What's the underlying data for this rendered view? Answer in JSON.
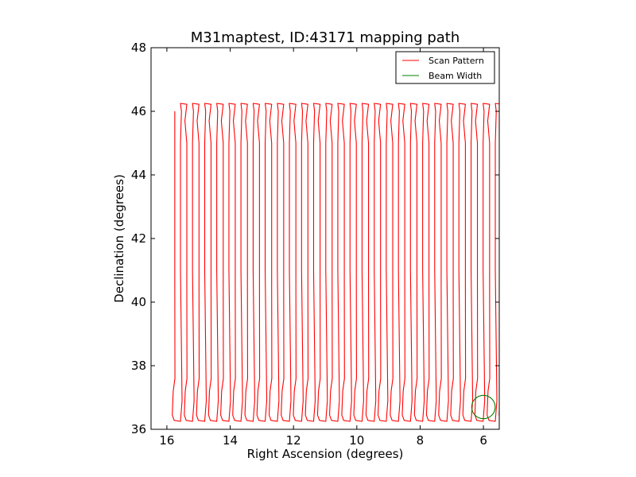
{
  "chart_data": {
    "type": "line",
    "title": "M31maptest, ID:43171 mapping path",
    "xlabel": "Right Ascension (degrees)",
    "ylabel": "Declination (degrees)",
    "xlim": [
      16.5,
      5.5
    ],
    "ylim": [
      36,
      48
    ],
    "x_ticks": [
      16,
      14,
      12,
      10,
      8,
      6
    ],
    "y_ticks": [
      36,
      38,
      40,
      42,
      44,
      46,
      48
    ],
    "x_tick_labels": [
      "16",
      "14",
      "12",
      "10",
      "8",
      "6"
    ],
    "y_tick_labels": [
      "36",
      "38",
      "40",
      "42",
      "44",
      "46",
      "48"
    ],
    "grid": false,
    "legend_position": "top-right",
    "series": [
      {
        "name": "Scan Pattern",
        "color": "#ff0000",
        "style": "raster",
        "x_start": 15.75,
        "x_end": 5.55,
        "scan_spacing": 0.38,
        "dec_low": 36.25,
        "dec_high": 46.25,
        "dec_start": 46.0
      },
      {
        "name": "Beam Width",
        "color": "#008000",
        "style": "circle",
        "center": [
          6.0,
          36.7
        ],
        "radius": 0.37
      }
    ]
  }
}
